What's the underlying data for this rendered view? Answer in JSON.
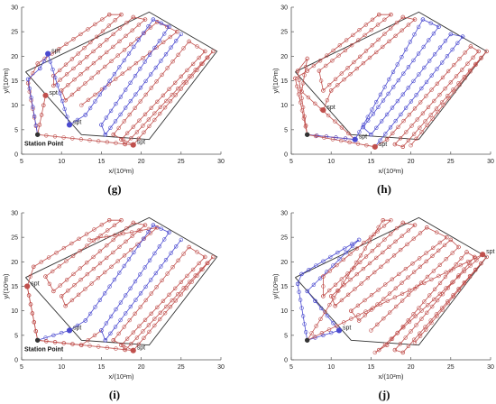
{
  "colors": {
    "boundary": "#333333",
    "red_route": "#c0504d",
    "blue_route": "#4a4ad0",
    "axis": "#555555"
  },
  "texts": {
    "xlabel": "x/(10²m)",
    "ylabel": "y/(10²m)",
    "spt": "spt",
    "station": "Station Point"
  },
  "axes": {
    "xlim": [
      5,
      30
    ],
    "ylim": [
      0,
      30
    ],
    "xticks": [
      5,
      10,
      15,
      20,
      25,
      30
    ],
    "yticks": [
      0,
      5,
      10,
      15,
      20,
      25,
      30
    ]
  },
  "chart_data": [
    {
      "type": "line",
      "panel_label": "(g)",
      "boundary": [
        [
          5.5,
          16.8
        ],
        [
          21,
          29
        ],
        [
          29.5,
          21
        ],
        [
          21,
          3
        ],
        [
          12.5,
          4
        ],
        [
          5.5,
          16.8
        ]
      ],
      "station": [
        7,
        4
      ],
      "show_station_label": true,
      "spt_points": [
        {
          "x": 8.3,
          "y": 20.5,
          "color": "blue"
        },
        {
          "x": 8,
          "y": 12,
          "color": "red"
        },
        {
          "x": 11,
          "y": 6,
          "color": "blue"
        },
        {
          "x": 19,
          "y": 1.9,
          "color": "red"
        }
      ],
      "series": [
        {
          "color": "red",
          "values": [
            [
              7,
              4
            ],
            [
              5.8,
              14.5
            ],
            [
              7,
              18.5
            ],
            [
              16,
              28.5
            ],
            [
              17.5,
              28.5
            ],
            [
              9,
              16
            ],
            [
              9,
              14
            ],
            [
              19,
              28
            ],
            [
              20.5,
              27.5
            ],
            [
              10,
              13
            ],
            [
              10.5,
              11
            ],
            [
              22,
              27
            ],
            [
              24.5,
              25
            ],
            [
              12.5,
              10
            ]
          ]
        },
        {
          "color": "blue",
          "values": [
            [
              7,
              4
            ],
            [
              5.8,
              15.3
            ],
            [
              7.3,
              17.5
            ],
            [
              8.3,
              20.5
            ],
            [
              11,
              6
            ],
            [
              13,
              8
            ],
            [
              21.5,
              27.5
            ],
            [
              23.5,
              26
            ],
            [
              15,
              6
            ],
            [
              15.5,
              4
            ],
            [
              25,
              24.5
            ]
          ]
        },
        {
          "color": "red",
          "values": [
            [
              7,
              4
            ],
            [
              8,
              12
            ],
            [
              7,
              4
            ],
            [
              19,
              1.9
            ],
            [
              16.5,
              4
            ],
            [
              26,
              23
            ],
            [
              28,
              21
            ],
            [
              17.5,
              3
            ],
            [
              18,
              2
            ],
            [
              29,
              21
            ],
            [
              19,
              1.9
            ]
          ]
        }
      ]
    },
    {
      "type": "line",
      "panel_label": "(h)",
      "boundary": [
        [
          5.5,
          16.8
        ],
        [
          21,
          29
        ],
        [
          29.5,
          21
        ],
        [
          21,
          3
        ],
        [
          12.5,
          4
        ],
        [
          5.5,
          16.8
        ]
      ],
      "station": [
        7,
        4
      ],
      "show_station_label": false,
      "spt_points": [
        {
          "x": 9,
          "y": 9,
          "color": "red"
        },
        {
          "x": 13,
          "y": 3,
          "color": "blue"
        },
        {
          "x": 15.5,
          "y": 1.5,
          "color": "red"
        }
      ],
      "series": [
        {
          "color": "red",
          "values": [
            [
              7,
              4
            ],
            [
              5.5,
              15.5
            ],
            [
              7,
              17
            ],
            [
              16,
              28.5
            ],
            [
              17.5,
              28.5
            ],
            [
              8.5,
              17
            ],
            [
              9,
              13
            ],
            [
              19,
              28
            ],
            [
              20.5,
              27.5
            ],
            [
              10,
              13
            ],
            [
              9,
              9
            ]
          ]
        },
        {
          "color": "red",
          "values": [
            [
              7,
              4
            ],
            [
              5.8,
              17
            ],
            [
              7,
              19.5
            ],
            [
              6.3,
              12.8
            ],
            [
              13,
              3
            ],
            [
              7,
              4
            ]
          ]
        },
        {
          "color": "blue",
          "values": [
            [
              7,
              4
            ],
            [
              13,
              3
            ],
            [
              21.5,
              27.5
            ],
            [
              23.5,
              26
            ],
            [
              14,
              5.5
            ],
            [
              15,
              4
            ],
            [
              25,
              24.5
            ],
            [
              26.5,
              24
            ],
            [
              15.5,
              1.5
            ]
          ]
        },
        {
          "color": "red",
          "values": [
            [
              7,
              4
            ],
            [
              15.5,
              1.5
            ],
            [
              17,
              3
            ],
            [
              27.5,
              22
            ],
            [
              28.5,
              21
            ],
            [
              18,
              2
            ],
            [
              19,
              1.5
            ],
            [
              29.5,
              21
            ],
            [
              20,
              1.8
            ]
          ]
        }
      ]
    },
    {
      "type": "line",
      "panel_label": "(i)",
      "boundary": [
        [
          5.5,
          16.8
        ],
        [
          21,
          29
        ],
        [
          29.5,
          21
        ],
        [
          21,
          3
        ],
        [
          12.5,
          4
        ],
        [
          5.5,
          16.8
        ]
      ],
      "station": [
        7,
        4
      ],
      "show_station_label": true,
      "spt_points": [
        {
          "x": 5.7,
          "y": 15,
          "color": "red"
        },
        {
          "x": 11,
          "y": 6,
          "color": "blue"
        },
        {
          "x": 19,
          "y": 1.9,
          "color": "red"
        }
      ],
      "series": [
        {
          "color": "red",
          "values": [
            [
              7,
              4
            ],
            [
              5.7,
              15
            ],
            [
              6.5,
              19
            ],
            [
              16,
              28.5
            ],
            [
              17.5,
              28.5
            ],
            [
              8,
              17
            ],
            [
              9,
              14
            ],
            [
              19,
              28
            ],
            [
              20.5,
              27.5
            ],
            [
              10,
              13
            ],
            [
              10.5,
              11
            ],
            [
              22,
              27
            ],
            [
              13.5,
              24.5
            ]
          ]
        },
        {
          "color": "red",
          "values": [
            [
              7,
              4
            ],
            [
              5.7,
              15
            ],
            [
              7,
              4
            ],
            [
              12.5,
              3
            ],
            [
              15,
              6
            ]
          ]
        },
        {
          "color": "blue",
          "values": [
            [
              7,
              4
            ],
            [
              11,
              6
            ],
            [
              13,
              8
            ],
            [
              21.5,
              27.5
            ],
            [
              23.5,
              26
            ],
            [
              15,
              6
            ],
            [
              15.5,
              4
            ],
            [
              25,
              24.5
            ]
          ]
        },
        {
          "color": "red",
          "values": [
            [
              7,
              4
            ],
            [
              19,
              1.9
            ],
            [
              16.5,
              4
            ],
            [
              26,
              23
            ],
            [
              28,
              21
            ],
            [
              17.5,
              3
            ],
            [
              18,
              2
            ],
            [
              29,
              21
            ],
            [
              19,
              1.9
            ]
          ]
        }
      ]
    },
    {
      "type": "line",
      "panel_label": "(j)",
      "boundary": [
        [
          5.5,
          16.8
        ],
        [
          21,
          29
        ],
        [
          29.5,
          21
        ],
        [
          21,
          3
        ],
        [
          12.5,
          4
        ],
        [
          5.5,
          16.8
        ]
      ],
      "station": [
        7,
        4
      ],
      "show_station_label": false,
      "spt_points": [
        {
          "x": 11,
          "y": 6,
          "color": "blue"
        },
        {
          "x": 29,
          "y": 21.5,
          "color": "red"
        }
      ],
      "series": [
        {
          "color": "blue",
          "values": [
            [
              7,
              4
            ],
            [
              5.8,
              15.5
            ],
            [
              6.3,
              17.5
            ],
            [
              13.5,
              24.5
            ],
            [
              7,
              14
            ],
            [
              8,
              12
            ],
            [
              11,
              6
            ],
            [
              7,
              4
            ]
          ]
        },
        {
          "color": "red",
          "values": [
            [
              7,
              4
            ],
            [
              16.5,
              28.5
            ],
            [
              17.5,
              28.5
            ],
            [
              9,
              17
            ],
            [
              9,
              13
            ],
            [
              19,
              28
            ],
            [
              20.5,
              27.5
            ],
            [
              10,
              13
            ],
            [
              10.5,
              11
            ],
            [
              22,
              27
            ],
            [
              24.5,
              25
            ],
            [
              12.5,
              10
            ],
            [
              13.5,
              8
            ],
            [
              25,
              24.5
            ],
            [
              26,
              23
            ],
            [
              15,
              6
            ]
          ]
        },
        {
          "color": "red",
          "values": [
            [
              7,
              4
            ],
            [
              29,
              21.5
            ],
            [
              16,
              2
            ],
            [
              15.5,
              1.5
            ],
            [
              17,
              3
            ],
            [
              27,
              22
            ],
            [
              28,
              21
            ],
            [
              18,
              2
            ],
            [
              19,
              1.5
            ],
            [
              29.5,
              21
            ],
            [
              20.5,
              3.5
            ]
          ]
        }
      ]
    }
  ]
}
